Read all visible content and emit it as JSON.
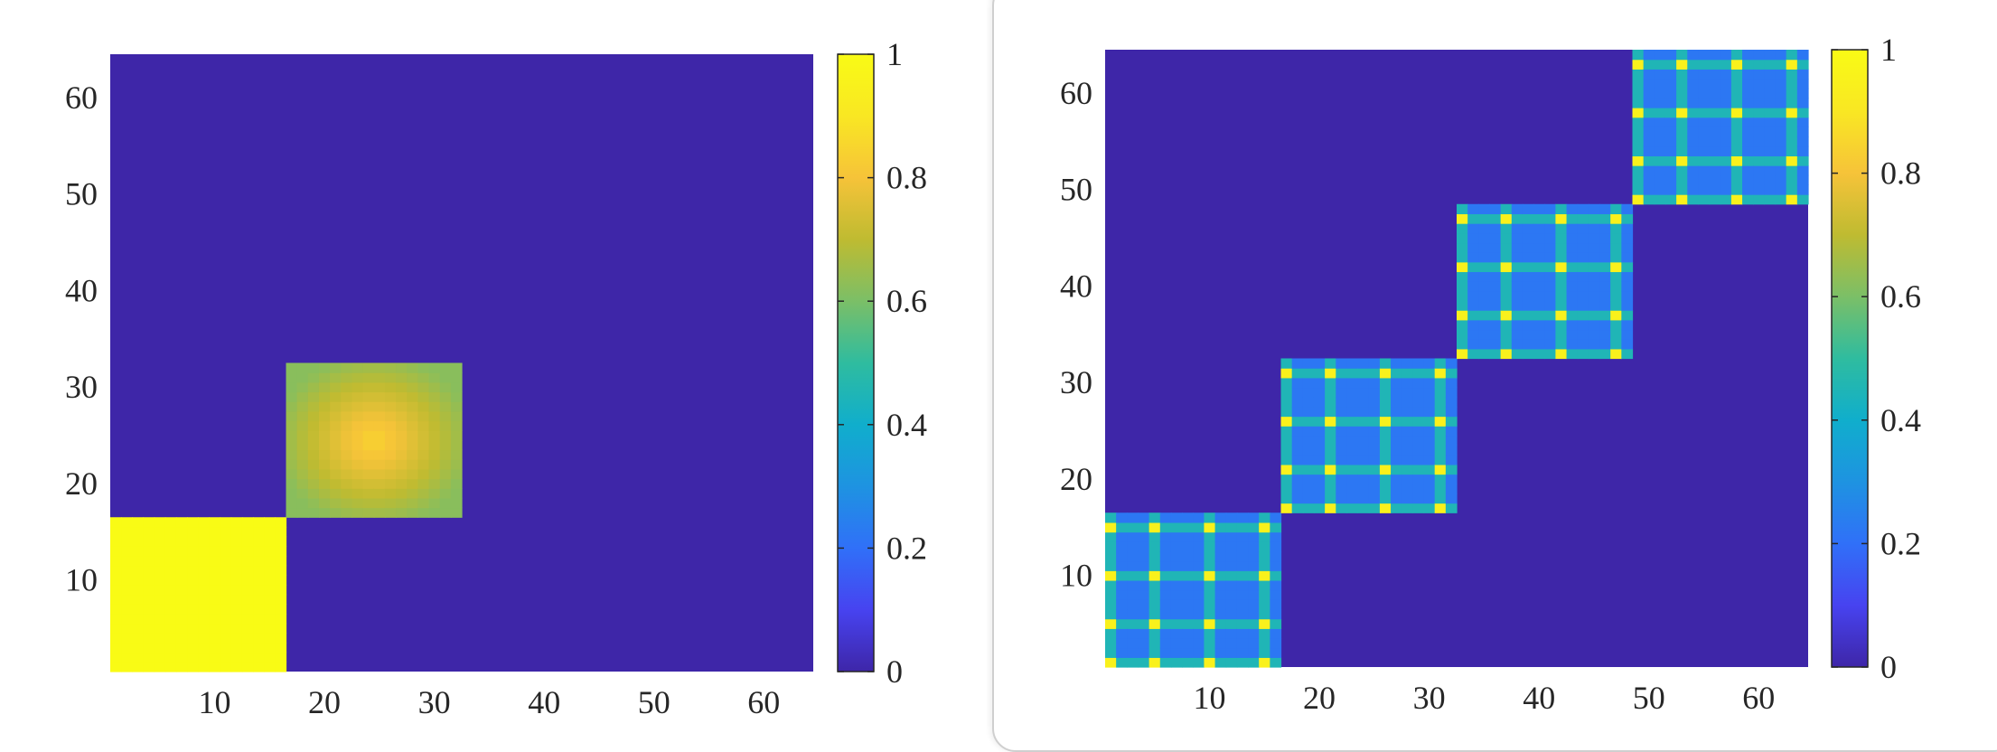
{
  "colormap": "parula",
  "colors": {
    "background": "#3E26A8",
    "parula_stops": [
      "#3E26A8",
      "#4743F0",
      "#3070F8",
      "#1E93E1",
      "#10AECC",
      "#2FBC9F",
      "#7BBF67",
      "#BFBB31",
      "#F6C339",
      "#F9E723",
      "#F9FB15"
    ]
  },
  "chart_data": [
    {
      "type": "heatmap",
      "title": "",
      "xlabel": "",
      "ylabel": "",
      "xlim": [
        1,
        64
      ],
      "ylim": [
        1,
        64
      ],
      "x_ticks": [
        "10",
        "20",
        "30",
        "40",
        "50",
        "60"
      ],
      "y_ticks": [
        "10",
        "20",
        "30",
        "40",
        "50",
        "60"
      ],
      "colorbar": {
        "range": [
          0,
          1
        ],
        "ticks": [
          "0",
          "0.2",
          "0.4",
          "0.6",
          "0.8",
          "1"
        ]
      },
      "background_value": 0.0,
      "blocks": [
        {
          "x_range": [
            1,
            16
          ],
          "y_range": [
            1,
            16
          ],
          "value": 1.0,
          "pattern": "uniform"
        },
        {
          "x_range": [
            17,
            32
          ],
          "y_range": [
            17,
            32
          ],
          "center_value": 0.85,
          "edge_value": 0.62,
          "pattern": "radial"
        }
      ]
    },
    {
      "type": "heatmap",
      "title": "",
      "xlabel": "",
      "ylabel": "",
      "xlim": [
        1,
        64
      ],
      "ylim": [
        1,
        64
      ],
      "x_ticks": [
        "10",
        "20",
        "30",
        "40",
        "50",
        "60"
      ],
      "y_ticks": [
        "10",
        "20",
        "30",
        "40",
        "50",
        "60"
      ],
      "colorbar": {
        "range": [
          0,
          1
        ],
        "ticks": [
          "0",
          "0.2",
          "0.4",
          "0.6",
          "0.8",
          "1"
        ]
      },
      "background_value": 0.0,
      "blocks": [
        {
          "x_range": [
            1,
            16
          ],
          "y_range": [
            1,
            16
          ],
          "base_value": 0.22,
          "stripe_value": 0.45,
          "peak_value": 0.95,
          "stripe_positions": [
            1,
            5,
            10,
            15
          ],
          "pattern": "grid"
        },
        {
          "x_range": [
            17,
            32
          ],
          "y_range": [
            17,
            32
          ],
          "base_value": 0.22,
          "stripe_value": 0.45,
          "peak_value": 0.95,
          "stripe_positions": [
            17,
            21,
            26,
            31
          ],
          "pattern": "grid"
        },
        {
          "x_range": [
            33,
            48
          ],
          "y_range": [
            33,
            48
          ],
          "base_value": 0.22,
          "stripe_value": 0.45,
          "peak_value": 0.95,
          "stripe_positions": [
            33,
            37,
            42,
            47
          ],
          "pattern": "grid"
        },
        {
          "x_range": [
            49,
            64
          ],
          "y_range": [
            49,
            64
          ],
          "base_value": 0.22,
          "stripe_value": 0.45,
          "peak_value": 0.95,
          "stripe_positions": [
            49,
            53,
            58,
            63
          ],
          "pattern": "grid"
        }
      ]
    }
  ]
}
